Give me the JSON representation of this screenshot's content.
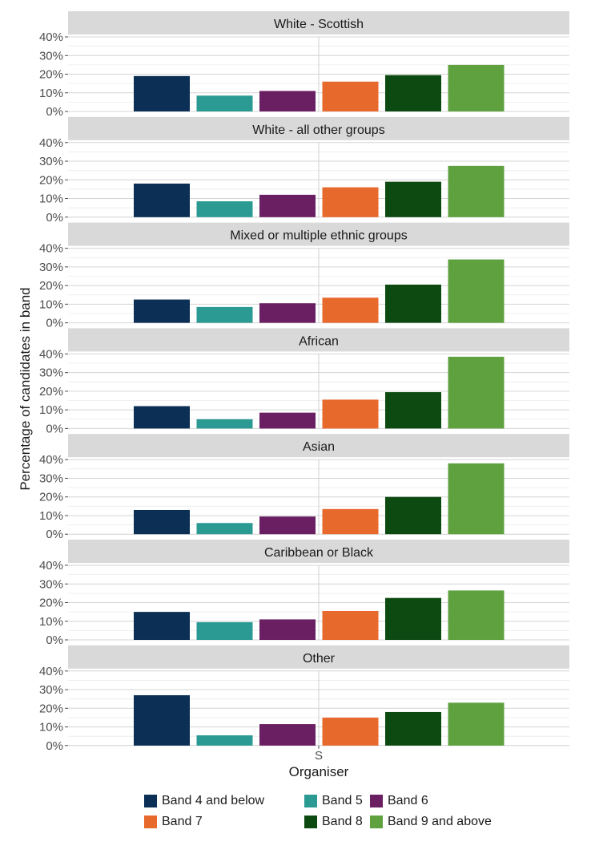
{
  "chart_data": {
    "type": "bar",
    "panels": [
      {
        "title": "White - Scottish",
        "values": [
          19,
          8.5,
          11,
          16,
          19.5,
          25
        ]
      },
      {
        "title": "White - all other groups",
        "values": [
          18,
          8.5,
          12,
          16,
          19,
          27.5
        ]
      },
      {
        "title": "Mixed or multiple ethnic groups",
        "values": [
          12.5,
          8.5,
          10.5,
          13.5,
          20.5,
          34
        ]
      },
      {
        "title": "African",
        "values": [
          12,
          5,
          8.5,
          15.5,
          19.5,
          38.5
        ]
      },
      {
        "title": "Asian",
        "values": [
          13,
          6,
          9.5,
          13.5,
          20,
          38
        ]
      },
      {
        "title": "Caribbean or Black",
        "values": [
          15,
          9.5,
          11,
          15.5,
          22.5,
          26.5
        ]
      },
      {
        "title": "Other",
        "values": [
          27,
          5.5,
          11.5,
          15,
          18,
          23
        ]
      }
    ],
    "series": [
      {
        "name": "Band 4 and below",
        "color": "#0b2f55"
      },
      {
        "name": "Band 5",
        "color": "#2b9a92"
      },
      {
        "name": "Band 6",
        "color": "#6b1f63"
      },
      {
        "name": "Band 7",
        "color": "#e7692c"
      },
      {
        "name": "Band 8",
        "color": "#0d4a12"
      },
      {
        "name": "Band 9 and above",
        "color": "#5fa13f"
      }
    ],
    "x_tick": "S",
    "xlabel": "Organiser",
    "ylabel": "Percentage of candidates in band",
    "ylim": [
      0,
      40
    ],
    "yticks": [
      "0%",
      "10%",
      "20%",
      "30%",
      "40%"
    ],
    "legend_position": "bottom",
    "grid": true
  }
}
